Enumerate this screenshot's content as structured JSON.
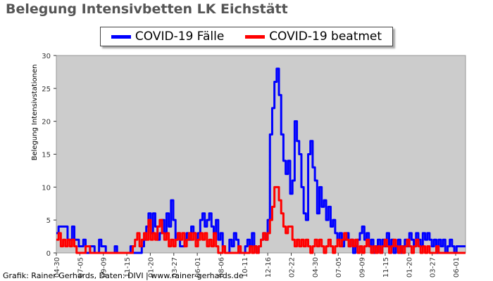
{
  "title": "Belegung Intensivbetten LK Eichstätt",
  "credit": "Grafik: Rainer Gerhards, Daten: DIVI | www.rainer-gerhards.de",
  "chart_data": {
    "type": "line",
    "ylabel": "Belegung Intensivstationen",
    "ylim": [
      0,
      30
    ],
    "yticks": [
      0,
      5,
      10,
      15,
      20,
      25,
      30
    ],
    "xticks": [
      "04-30",
      "07-05",
      "09-09",
      "11-15",
      "01-20",
      "03-27",
      "06-01",
      "08-06",
      "10-11",
      "12-16",
      "02-22",
      "04-30",
      "07-05",
      "09-09",
      "11-15",
      "01-20",
      "03-27",
      "06-01"
    ],
    "grid": false,
    "legend_position": "top",
    "background": "#cccccc",
    "series": [
      {
        "name": "COVID-19 Fälle",
        "color": "#0000ff",
        "points": [
          [
            0,
            3
          ],
          [
            1,
            4
          ],
          [
            3,
            4
          ],
          [
            5,
            2
          ],
          [
            7,
            4
          ],
          [
            8,
            2
          ],
          [
            10,
            1
          ],
          [
            12,
            2
          ],
          [
            13,
            0
          ],
          [
            15,
            1
          ],
          [
            17,
            0
          ],
          [
            19,
            2
          ],
          [
            20,
            1
          ],
          [
            22,
            0
          ],
          [
            26,
            1
          ],
          [
            27,
            0
          ],
          [
            33,
            1
          ],
          [
            34,
            0
          ],
          [
            38,
            1
          ],
          [
            39,
            2
          ],
          [
            40,
            4
          ],
          [
            41,
            6
          ],
          [
            42,
            3
          ],
          [
            43,
            6
          ],
          [
            44,
            4
          ],
          [
            45,
            2
          ],
          [
            46,
            3
          ],
          [
            47,
            5
          ],
          [
            48,
            3
          ],
          [
            49,
            6
          ],
          [
            50,
            4
          ],
          [
            51,
            8
          ],
          [
            52,
            5
          ],
          [
            53,
            2
          ],
          [
            54,
            3
          ],
          [
            55,
            1
          ],
          [
            57,
            2
          ],
          [
            58,
            3
          ],
          [
            59,
            2
          ],
          [
            60,
            4
          ],
          [
            61,
            3
          ],
          [
            62,
            2
          ],
          [
            63,
            3
          ],
          [
            64,
            5
          ],
          [
            65,
            6
          ],
          [
            66,
            4
          ],
          [
            67,
            5
          ],
          [
            68,
            6
          ],
          [
            69,
            4
          ],
          [
            70,
            3
          ],
          [
            71,
            5
          ],
          [
            72,
            2
          ],
          [
            73,
            3
          ],
          [
            74,
            1
          ],
          [
            75,
            0
          ],
          [
            77,
            2
          ],
          [
            78,
            1
          ],
          [
            79,
            3
          ],
          [
            80,
            2
          ],
          [
            81,
            0
          ],
          [
            83,
            0
          ],
          [
            84,
            1
          ],
          [
            85,
            2
          ],
          [
            86,
            1
          ],
          [
            87,
            3
          ],
          [
            88,
            1
          ],
          [
            89,
            0
          ],
          [
            90,
            1
          ],
          [
            91,
            2
          ],
          [
            92,
            3
          ],
          [
            93,
            2
          ],
          [
            94,
            5
          ],
          [
            95,
            18
          ],
          [
            96,
            22
          ],
          [
            97,
            26
          ],
          [
            98,
            28
          ],
          [
            99,
            24
          ],
          [
            100,
            18
          ],
          [
            101,
            14
          ],
          [
            102,
            12
          ],
          [
            103,
            14
          ],
          [
            104,
            9
          ],
          [
            105,
            11
          ],
          [
            106,
            20
          ],
          [
            107,
            17
          ],
          [
            108,
            15
          ],
          [
            109,
            10
          ],
          [
            110,
            6
          ],
          [
            111,
            5
          ],
          [
            112,
            15
          ],
          [
            113,
            17
          ],
          [
            114,
            13
          ],
          [
            115,
            11
          ],
          [
            116,
            6
          ],
          [
            117,
            10
          ],
          [
            118,
            7
          ],
          [
            119,
            8
          ],
          [
            120,
            5
          ],
          [
            121,
            7
          ],
          [
            122,
            4
          ],
          [
            123,
            5
          ],
          [
            124,
            3
          ],
          [
            125,
            2
          ],
          [
            126,
            3
          ],
          [
            127,
            1
          ],
          [
            128,
            2
          ],
          [
            129,
            3
          ],
          [
            130,
            1
          ],
          [
            131,
            2
          ],
          [
            132,
            0
          ],
          [
            133,
            1
          ],
          [
            134,
            2
          ],
          [
            135,
            3
          ],
          [
            136,
            4
          ],
          [
            137,
            2
          ],
          [
            138,
            3
          ],
          [
            139,
            1
          ],
          [
            140,
            2
          ],
          [
            141,
            0
          ],
          [
            142,
            1
          ],
          [
            143,
            2
          ],
          [
            144,
            0
          ],
          [
            145,
            2
          ],
          [
            146,
            1
          ],
          [
            147,
            3
          ],
          [
            148,
            1
          ],
          [
            149,
            2
          ],
          [
            150,
            0
          ],
          [
            151,
            1
          ],
          [
            152,
            2
          ],
          [
            153,
            0
          ],
          [
            154,
            1
          ],
          [
            155,
            2
          ],
          [
            156,
            1
          ],
          [
            157,
            3
          ],
          [
            158,
            2
          ],
          [
            159,
            1
          ],
          [
            160,
            3
          ],
          [
            161,
            2
          ],
          [
            162,
            1
          ],
          [
            163,
            3
          ],
          [
            164,
            2
          ],
          [
            165,
            3
          ],
          [
            166,
            2
          ],
          [
            167,
            1
          ],
          [
            168,
            2
          ],
          [
            169,
            0
          ],
          [
            170,
            2
          ],
          [
            171,
            1
          ],
          [
            172,
            2
          ],
          [
            173,
            0
          ],
          [
            174,
            1
          ],
          [
            175,
            2
          ],
          [
            176,
            1
          ],
          [
            177,
            0
          ],
          [
            178,
            1
          ],
          [
            180,
            1
          ],
          [
            182,
            1
          ]
        ]
      },
      {
        "name": "COVID-19 beatmet",
        "color": "#ff0000",
        "points": [
          [
            0,
            2
          ],
          [
            1,
            3
          ],
          [
            2,
            1
          ],
          [
            3,
            2
          ],
          [
            4,
            1
          ],
          [
            5,
            2
          ],
          [
            6,
            1
          ],
          [
            7,
            2
          ],
          [
            8,
            1
          ],
          [
            9,
            0
          ],
          [
            12,
            0
          ],
          [
            13,
            1
          ],
          [
            15,
            0
          ],
          [
            33,
            0
          ],
          [
            34,
            1
          ],
          [
            35,
            2
          ],
          [
            36,
            3
          ],
          [
            37,
            1
          ],
          [
            38,
            2
          ],
          [
            39,
            3
          ],
          [
            40,
            2
          ],
          [
            41,
            5
          ],
          [
            42,
            2
          ],
          [
            43,
            3
          ],
          [
            44,
            2
          ],
          [
            45,
            4
          ],
          [
            46,
            5
          ],
          [
            47,
            3
          ],
          [
            48,
            2
          ],
          [
            49,
            3
          ],
          [
            50,
            1
          ],
          [
            51,
            2
          ],
          [
            52,
            1
          ],
          [
            53,
            2
          ],
          [
            54,
            3
          ],
          [
            55,
            2
          ],
          [
            56,
            3
          ],
          [
            57,
            1
          ],
          [
            58,
            2
          ],
          [
            59,
            3
          ],
          [
            60,
            2
          ],
          [
            61,
            3
          ],
          [
            62,
            1
          ],
          [
            63,
            2
          ],
          [
            64,
            3
          ],
          [
            65,
            2
          ],
          [
            66,
            3
          ],
          [
            67,
            1
          ],
          [
            68,
            2
          ],
          [
            69,
            1
          ],
          [
            70,
            3
          ],
          [
            71,
            1
          ],
          [
            72,
            0
          ],
          [
            74,
            1
          ],
          [
            75,
            0
          ],
          [
            80,
            0
          ],
          [
            81,
            1
          ],
          [
            82,
            0
          ],
          [
            86,
            1
          ],
          [
            87,
            0
          ],
          [
            88,
            1
          ],
          [
            89,
            0
          ],
          [
            90,
            1
          ],
          [
            91,
            2
          ],
          [
            92,
            3
          ],
          [
            93,
            2
          ],
          [
            94,
            3
          ],
          [
            95,
            5
          ],
          [
            96,
            7
          ],
          [
            97,
            10
          ],
          [
            98,
            10
          ],
          [
            99,
            8
          ],
          [
            100,
            6
          ],
          [
            101,
            4
          ],
          [
            102,
            3
          ],
          [
            103,
            4
          ],
          [
            104,
            4
          ],
          [
            105,
            2
          ],
          [
            106,
            1
          ],
          [
            107,
            2
          ],
          [
            108,
            1
          ],
          [
            109,
            2
          ],
          [
            110,
            1
          ],
          [
            111,
            2
          ],
          [
            112,
            1
          ],
          [
            113,
            0
          ],
          [
            114,
            1
          ],
          [
            115,
            2
          ],
          [
            116,
            1
          ],
          [
            117,
            2
          ],
          [
            118,
            1
          ],
          [
            119,
            0
          ],
          [
            120,
            1
          ],
          [
            121,
            2
          ],
          [
            122,
            1
          ],
          [
            123,
            0
          ],
          [
            124,
            1
          ],
          [
            125,
            2
          ],
          [
            126,
            1
          ],
          [
            127,
            2
          ],
          [
            128,
            3
          ],
          [
            129,
            2
          ],
          [
            130,
            1
          ],
          [
            131,
            2
          ],
          [
            132,
            1
          ],
          [
            133,
            2
          ],
          [
            134,
            0
          ],
          [
            135,
            1
          ],
          [
            136,
            0
          ],
          [
            137,
            1
          ],
          [
            138,
            2
          ],
          [
            139,
            1
          ],
          [
            140,
            0
          ],
          [
            141,
            1
          ],
          [
            142,
            0
          ],
          [
            143,
            1
          ],
          [
            144,
            0
          ],
          [
            145,
            1
          ],
          [
            146,
            2
          ],
          [
            147,
            1
          ],
          [
            148,
            0
          ],
          [
            149,
            1
          ],
          [
            150,
            2
          ],
          [
            151,
            1
          ],
          [
            152,
            0
          ],
          [
            153,
            1
          ],
          [
            154,
            0
          ],
          [
            155,
            1
          ],
          [
            156,
            2
          ],
          [
            157,
            1
          ],
          [
            158,
            0
          ],
          [
            159,
            1
          ],
          [
            160,
            2
          ],
          [
            161,
            1
          ],
          [
            162,
            0
          ],
          [
            163,
            1
          ],
          [
            164,
            0
          ],
          [
            165,
            1
          ],
          [
            166,
            0
          ],
          [
            168,
            0
          ],
          [
            169,
            1
          ],
          [
            170,
            0
          ],
          [
            182,
            0
          ]
        ]
      }
    ]
  }
}
